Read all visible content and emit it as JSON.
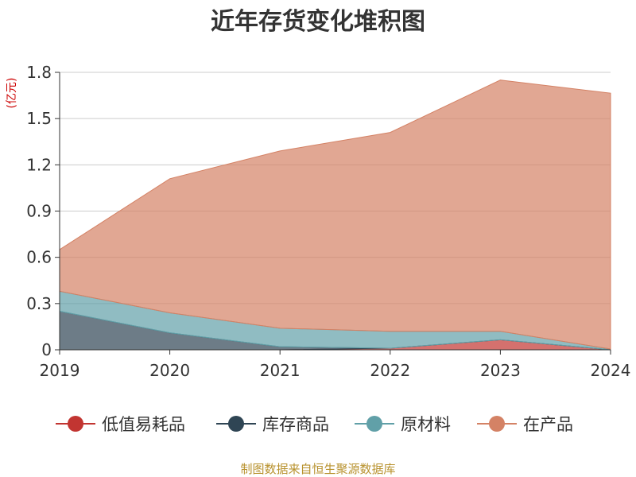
{
  "chart_data": {
    "type": "area",
    "stacked": true,
    "title": "近年存货变化堆积图",
    "unit_label": "(亿元)",
    "x": [
      "2019",
      "2020",
      "2021",
      "2022",
      "2023",
      "2024"
    ],
    "ylim": [
      0,
      1.8
    ],
    "yticks": [
      "0",
      "0.3",
      "0.6",
      "0.9",
      "1.2",
      "1.5",
      "1.8"
    ],
    "grid": true,
    "legend_position": "bottom",
    "series": [
      {
        "name": "低值易耗品",
        "color": "#c23531",
        "values": [
          0.0,
          0.0,
          0.0,
          0.01,
          0.065,
          0.0
        ]
      },
      {
        "name": "库存商品",
        "color": "#2f4554",
        "values": [
          0.25,
          0.11,
          0.02,
          0.0,
          0.0,
          0.0
        ]
      },
      {
        "name": "原材料",
        "color": "#61a0a8",
        "values": [
          0.13,
          0.13,
          0.12,
          0.11,
          0.055,
          0.005
        ]
      },
      {
        "name": "在产品",
        "color": "#d48265",
        "values": [
          0.27,
          0.87,
          1.15,
          1.29,
          1.63,
          1.66
        ]
      }
    ],
    "source": "制图数据来自恒生聚源数据库"
  }
}
